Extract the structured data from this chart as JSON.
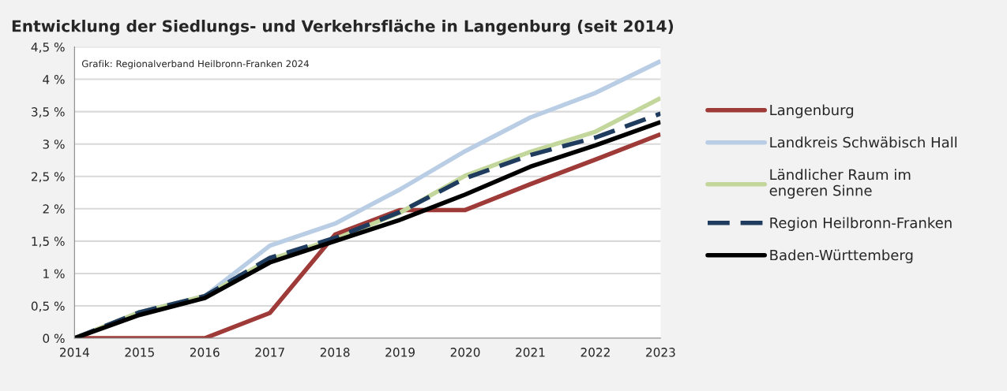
{
  "chart_data": {
    "type": "line",
    "title": "Entwicklung der Siedlungs- und Verkehrsfläche in Langenburg (seit 2014)",
    "x": [
      2014,
      2015,
      2016,
      2017,
      2018,
      2019,
      2020,
      2021,
      2022,
      2023
    ],
    "series": [
      {
        "name": "Langenburg",
        "color": "#9e3a38",
        "values": [
          0,
          0,
          0,
          0.39,
          1.6,
          1.98,
          1.98,
          2.38,
          2.76,
          3.15
        ]
      },
      {
        "name": "Landkreis Schwäbisch Hall",
        "color": "#b9cde5",
        "values": [
          0,
          0.4,
          0.65,
          1.43,
          1.77,
          2.3,
          2.89,
          3.41,
          3.79,
          4.28
        ]
      },
      {
        "name": "Ländlicher Raum im\nengeren Sinne",
        "color": "#c3d69b",
        "values": [
          0,
          0.4,
          0.65,
          1.22,
          1.53,
          1.94,
          2.51,
          2.88,
          3.19,
          3.71
        ]
      },
      {
        "name": "Region Heilbronn-Franken",
        "color": "#1f3b5e",
        "line_style": "dashed",
        "values": [
          0,
          0.4,
          0.65,
          1.24,
          1.55,
          1.95,
          2.47,
          2.83,
          3.1,
          3.47
        ]
      },
      {
        "name": "Baden-Württemberg",
        "color": "#000000",
        "values": [
          0,
          0.36,
          0.62,
          1.17,
          1.5,
          1.83,
          2.22,
          2.65,
          2.98,
          3.34
        ]
      }
    ],
    "xlim": [
      2014,
      2023
    ],
    "xticks": [
      2014,
      2015,
      2016,
      2017,
      2018,
      2019,
      2020,
      2021,
      2022,
      2023
    ],
    "ylim": [
      0,
      4.5
    ],
    "yticks": [
      {
        "value": 0,
        "label": "0 %"
      },
      {
        "value": 0.5,
        "label": "0,5 %"
      },
      {
        "value": 1,
        "label": "1 %"
      },
      {
        "value": 1.5,
        "label": "1,5 %"
      },
      {
        "value": 2,
        "label": "2 %"
      },
      {
        "value": 2.5,
        "label": "2,5 %"
      },
      {
        "value": 3,
        "label": "3 %"
      },
      {
        "value": 3.5,
        "label": "3,5 %"
      },
      {
        "value": 4,
        "label": "4 %"
      },
      {
        "value": 4.5,
        "label": "4,5 %"
      }
    ],
    "annotations": [
      "Grafik: Regionalverband Heilbronn-Franken 2024"
    ],
    "grid": "y",
    "legend": "right",
    "line_style": "solid",
    "marker": "none"
  }
}
